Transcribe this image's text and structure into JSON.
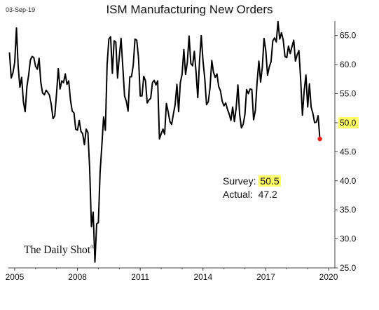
{
  "header": {
    "date": "03-Sep-19",
    "title": "ISM Manufacturing New Orders"
  },
  "watermark": {
    "text": "The Daily Shot",
    "reg": "®"
  },
  "annotation": {
    "survey_label": "Survey:",
    "survey_value": "50.5",
    "actual_label": "Actual:",
    "actual_value": "47.2"
  },
  "colors": {
    "line": "#000000",
    "highlight": "#ffff66",
    "last_point": "#e8201a"
  },
  "chart_data": {
    "type": "line",
    "title": "ISM Manufacturing New Orders",
    "xlabel": "",
    "ylabel": "",
    "xlim": [
      2004.7,
      2020.3
    ],
    "ylim": [
      25,
      67.5
    ],
    "x_ticks": [
      2005,
      2008,
      2011,
      2014,
      2017,
      2020
    ],
    "y_ticks": [
      "25.0",
      "30.0",
      "35.0",
      "40.0",
      "45.0",
      "50.0",
      "55.0",
      "60.0",
      "65.0"
    ],
    "y_axis_position": "right",
    "grid": false,
    "highlighted_y_tick": "50.0",
    "last_point_label": "",
    "series": [
      {
        "start": 2004.75,
        "step_months": 1,
        "values": [
          62.1,
          57.7,
          58.6,
          60.4,
          66.3,
          59.8,
          56.1,
          57.8,
          53.6,
          51.9,
          56.2,
          58.2,
          60.8,
          61.4,
          61.2,
          59.7,
          59.2,
          61.1,
          56.9,
          55.1,
          54.8,
          55.6,
          55.2,
          54.7,
          53.1,
          50.7,
          51.2,
          55.0,
          59.3,
          55.8,
          57.2,
          56.9,
          58.4,
          56.6,
          57.2,
          53.9,
          52.0,
          51.7,
          48.9,
          48.7,
          50.4,
          48.5,
          48.1,
          46.2,
          48.9,
          48.3,
          42.1,
          32.1,
          34.6,
          26.0,
          32.6,
          32.8,
          41.5,
          46.1,
          51.0,
          48.7,
          60.0,
          64.4,
          64.8,
          58.5,
          64.1,
          63.9,
          57.7,
          61.4,
          64.5,
          59.6,
          54.6,
          53.7,
          52.0,
          57.9,
          57.9,
          59.9,
          64.4,
          64.2,
          61.2,
          54.6,
          54.6,
          58.0,
          57.2,
          53.4,
          53.9,
          54.2,
          56.9,
          57.3,
          56.5,
          57.2,
          47.2,
          48.1,
          48.9,
          48.0,
          53.3,
          51.9,
          50.2,
          49.7,
          51.5,
          53.1,
          56.6,
          51.9,
          56.9,
          58.3,
          62.6,
          58.3,
          60.4,
          64.9,
          60.2,
          59.8,
          62.3,
          58.6,
          54.3,
          60.6,
          65.0,
          60.6,
          57.6,
          53.1,
          53.6,
          56.0,
          60.7,
          58.7,
          57.8,
          58.4,
          56.2,
          55.5,
          53.7,
          52.9,
          53.4,
          52.3,
          51.5,
          50.4,
          52.7,
          50.2,
          52.5,
          56.5,
          51.4,
          49.1,
          49.7,
          51.4,
          55.7,
          55.0,
          55.8,
          55.7,
          50.5,
          52.1,
          57.0,
          60.6,
          57.0,
          59.5,
          64.5,
          62.4,
          58.2,
          59.6,
          60.5,
          64.1,
          64.6,
          63.9,
          67.4,
          64.4,
          65.5,
          64.2,
          61.4,
          61.2,
          63.2,
          61.9,
          63.1,
          64.2,
          60.6,
          61.7,
          62.4,
          57.4,
          51.3,
          55.5,
          58.2,
          52.7,
          56.7,
          52.7,
          51.6,
          50.0,
          50.1,
          51.2,
          47.2
        ]
      }
    ]
  }
}
